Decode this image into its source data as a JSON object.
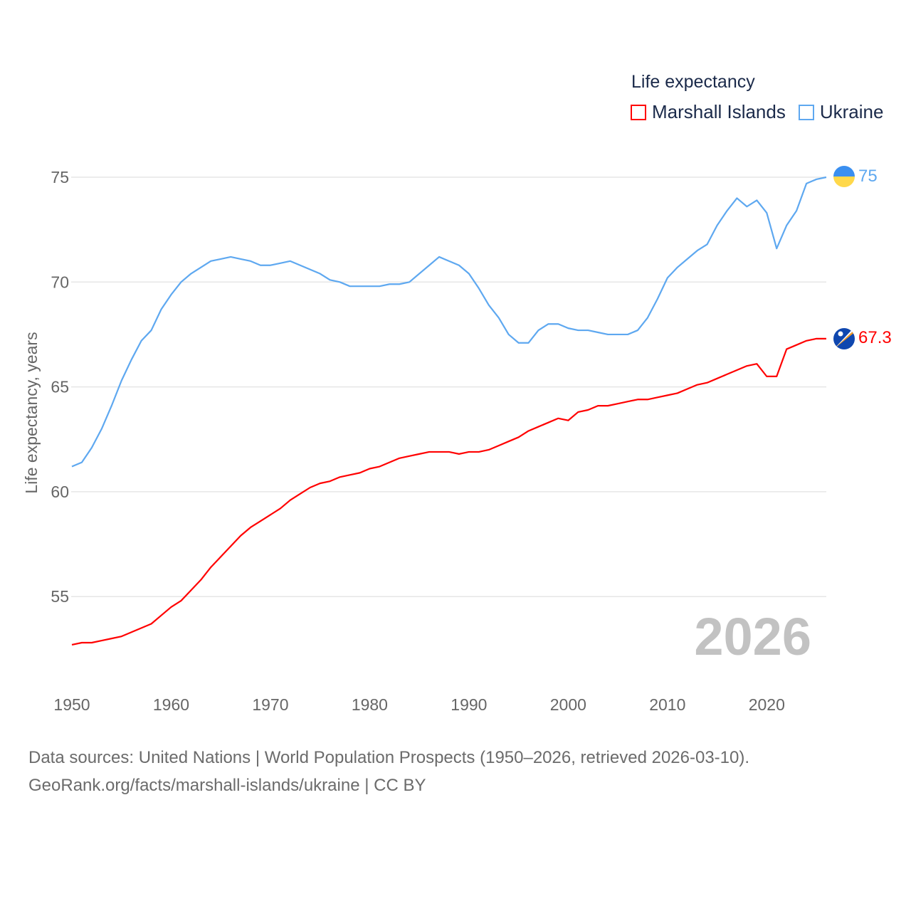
{
  "legend": {
    "title": "Life expectancy",
    "items": [
      {
        "label": "Marshall Islands",
        "color": "#ff0000"
      },
      {
        "label": "Ukraine",
        "color": "#5ea8f0"
      }
    ]
  },
  "year_label": "2026",
  "footer": {
    "line1": "Data sources: United Nations | World Population Prospects (1950–2026, retrieved 2026-03-10).",
    "line2": "GeoRank.org/facts/marshall-islands/ukraine | CC BY"
  },
  "chart_data": {
    "type": "line",
    "title": "Life expectancy",
    "xlabel": "",
    "ylabel": "Life expectancy, years",
    "xlim": [
      1950,
      2026
    ],
    "ylim": [
      52,
      75.5
    ],
    "xticks": [
      "1950",
      "1960",
      "1970",
      "1980",
      "1990",
      "2000",
      "2010",
      "2020"
    ],
    "yticks": [
      "55",
      "60",
      "65",
      "70",
      "75"
    ],
    "grid": true,
    "legend_position": "top-right",
    "x_start": 1950,
    "series": [
      {
        "name": "Marshall Islands",
        "color": "#ff0000",
        "end_label": "67.3",
        "flag": "marshall-islands",
        "values": [
          52.7,
          52.8,
          52.8,
          52.9,
          53.0,
          53.1,
          53.3,
          53.5,
          53.7,
          54.1,
          54.5,
          54.8,
          55.3,
          55.8,
          56.4,
          56.9,
          57.4,
          57.9,
          58.3,
          58.6,
          58.9,
          59.2,
          59.6,
          59.9,
          60.2,
          60.4,
          60.5,
          60.7,
          60.8,
          60.9,
          61.1,
          61.2,
          61.4,
          61.6,
          61.7,
          61.8,
          61.9,
          61.9,
          61.9,
          61.8,
          61.9,
          61.9,
          62.0,
          62.2,
          62.4,
          62.6,
          62.9,
          63.1,
          63.3,
          63.5,
          63.4,
          63.8,
          63.9,
          64.1,
          64.1,
          64.2,
          64.3,
          64.4,
          64.4,
          64.5,
          64.6,
          64.7,
          64.9,
          65.1,
          65.2,
          65.4,
          65.6,
          65.8,
          66.0,
          66.1,
          65.5,
          65.5,
          66.8,
          67.0,
          67.2,
          67.3,
          67.3
        ]
      },
      {
        "name": "Ukraine",
        "color": "#5ea8f0",
        "end_label": "75",
        "flag": "ukraine",
        "values": [
          61.2,
          61.4,
          62.1,
          63.0,
          64.1,
          65.3,
          66.3,
          67.2,
          67.7,
          68.7,
          69.4,
          70.0,
          70.4,
          70.7,
          71.0,
          71.1,
          71.2,
          71.1,
          71.0,
          70.8,
          70.8,
          70.9,
          71.0,
          70.8,
          70.6,
          70.4,
          70.1,
          70.0,
          69.8,
          69.8,
          69.8,
          69.8,
          69.9,
          69.9,
          70.0,
          70.4,
          70.8,
          71.2,
          71.0,
          70.8,
          70.4,
          69.7,
          68.9,
          68.3,
          67.5,
          67.1,
          67.1,
          67.7,
          68.0,
          68.0,
          67.8,
          67.7,
          67.7,
          67.6,
          67.5,
          67.5,
          67.5,
          67.7,
          68.3,
          69.2,
          70.2,
          70.7,
          71.1,
          71.5,
          71.8,
          72.7,
          73.4,
          74.0,
          73.6,
          73.9,
          73.3,
          71.6,
          72.7,
          73.4,
          74.7,
          74.9,
          75.0
        ]
      }
    ]
  }
}
